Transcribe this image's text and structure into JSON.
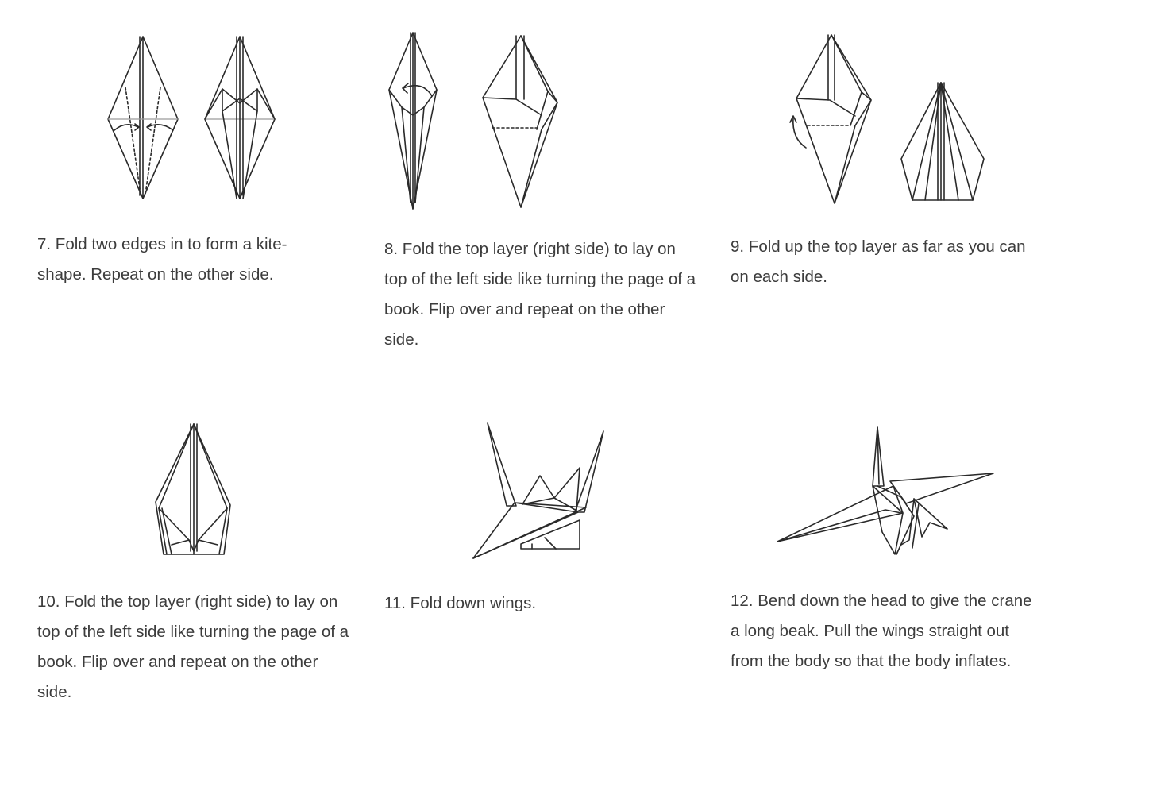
{
  "steps": [
    {
      "number": 7,
      "figure_icon": "kite-fold-icon",
      "text": "7. Fold two edges in to form a kite-shape. Repeat on the other side."
    },
    {
      "number": 8,
      "figure_icon": "page-turn-fold-icon",
      "text": "8. Fold the top layer (right side) to lay on top of the left side like turning the page of a book. Flip over and repeat on the other side."
    },
    {
      "number": 9,
      "figure_icon": "fold-up-layer-icon",
      "text": "9. Fold up the top layer as far as you can on each side."
    },
    {
      "number": 10,
      "figure_icon": "page-turn-fold-2-icon",
      "text": "10. Fold the top layer (right side) to lay on top of the left side like turning the page of a book. Flip over and repeat on the other side."
    },
    {
      "number": 11,
      "figure_icon": "fold-wings-icon",
      "text": "11. Fold down wings."
    },
    {
      "number": 12,
      "figure_icon": "finished-crane-icon",
      "text": "12. Bend down the head to give the crane a long beak. Pull the wings straight out from the body so that the body inflates."
    }
  ]
}
